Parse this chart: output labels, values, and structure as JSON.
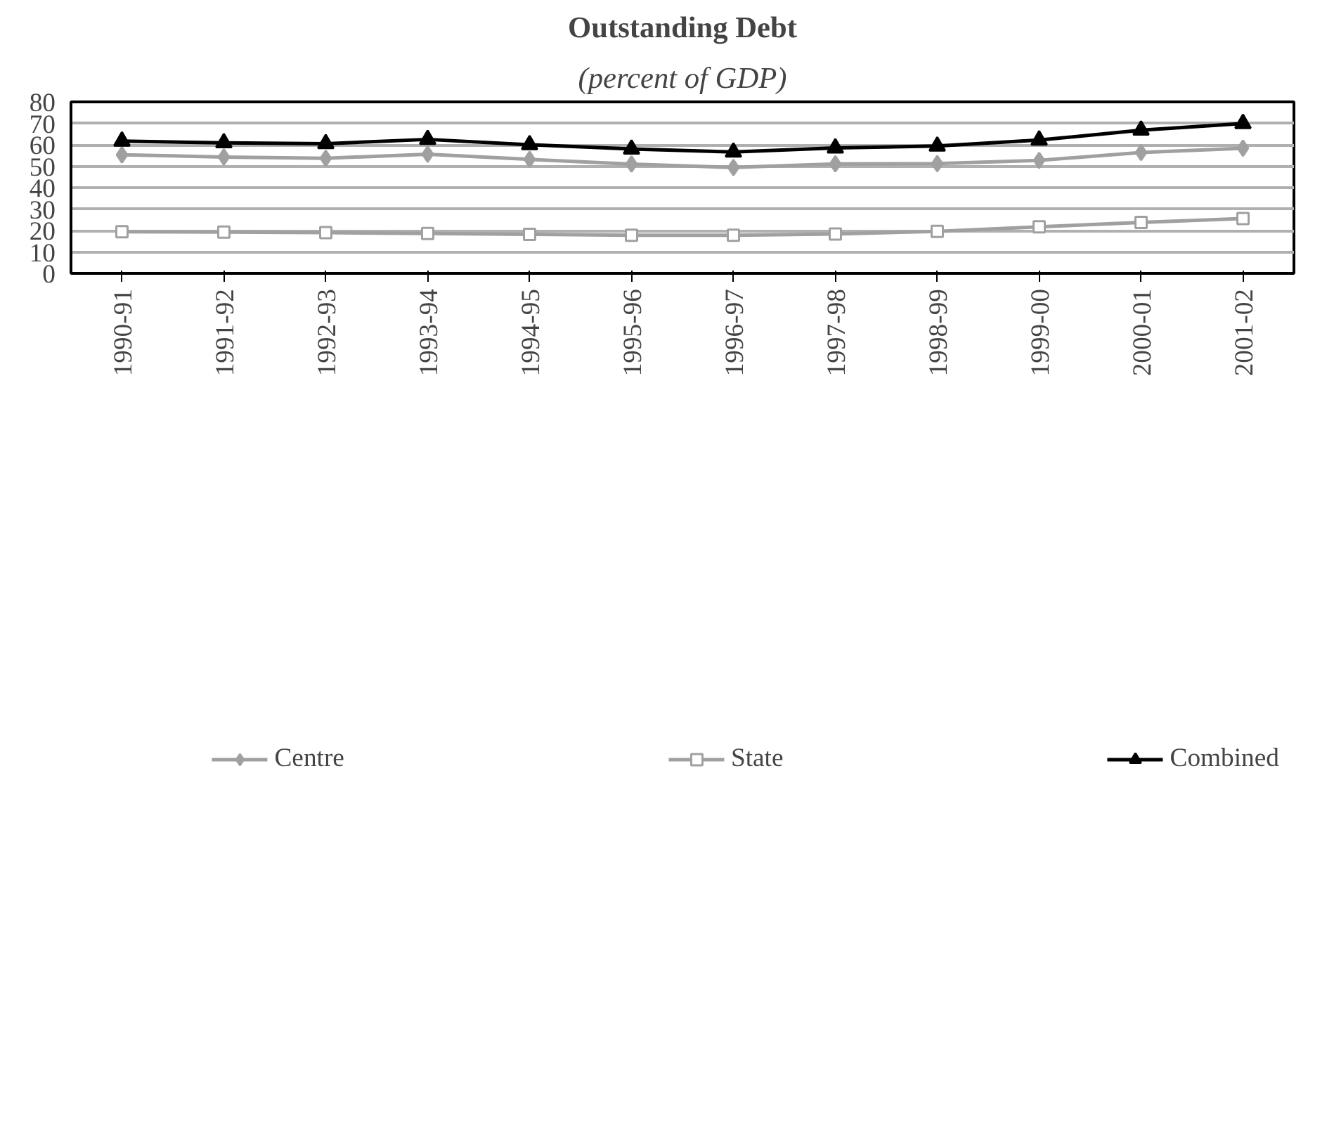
{
  "chart_data": {
    "type": "line",
    "title": "Outstanding Debt",
    "subtitle": "(percent of GDP)",
    "categories": [
      "1990-91",
      "1991-92",
      "1992-93",
      "1993-94",
      "1994-95",
      "1995-96",
      "1996-97",
      "1997-98",
      "1998-99",
      "1999-00",
      "2000-01",
      "2001-02"
    ],
    "series": [
      {
        "name": "Centre",
        "color": "#a0a0a0",
        "marker": "diamond",
        "values": [
          55.3,
          54.3,
          53.7,
          55.6,
          53.2,
          51.0,
          49.4,
          51.1,
          51.2,
          52.7,
          56.4,
          58.4
        ]
      },
      {
        "name": "State",
        "color": "#a0a0a0",
        "marker": "square",
        "values": [
          19.4,
          19.3,
          19.0,
          18.6,
          18.2,
          17.8,
          17.8,
          18.4,
          19.6,
          21.7,
          23.8,
          25.6
        ]
      },
      {
        "name": "Combined",
        "color": "#000000",
        "marker": "triangle",
        "values": [
          61.7,
          60.9,
          60.5,
          62.5,
          60.0,
          58.0,
          56.6,
          58.5,
          59.4,
          62.2,
          66.8,
          69.9
        ]
      }
    ],
    "ylim": [
      0,
      80
    ],
    "yticks": [
      0,
      10,
      20,
      30,
      40,
      50,
      60,
      70,
      80
    ],
    "grid": "y",
    "legend": "bottom",
    "line_style": "solid"
  }
}
